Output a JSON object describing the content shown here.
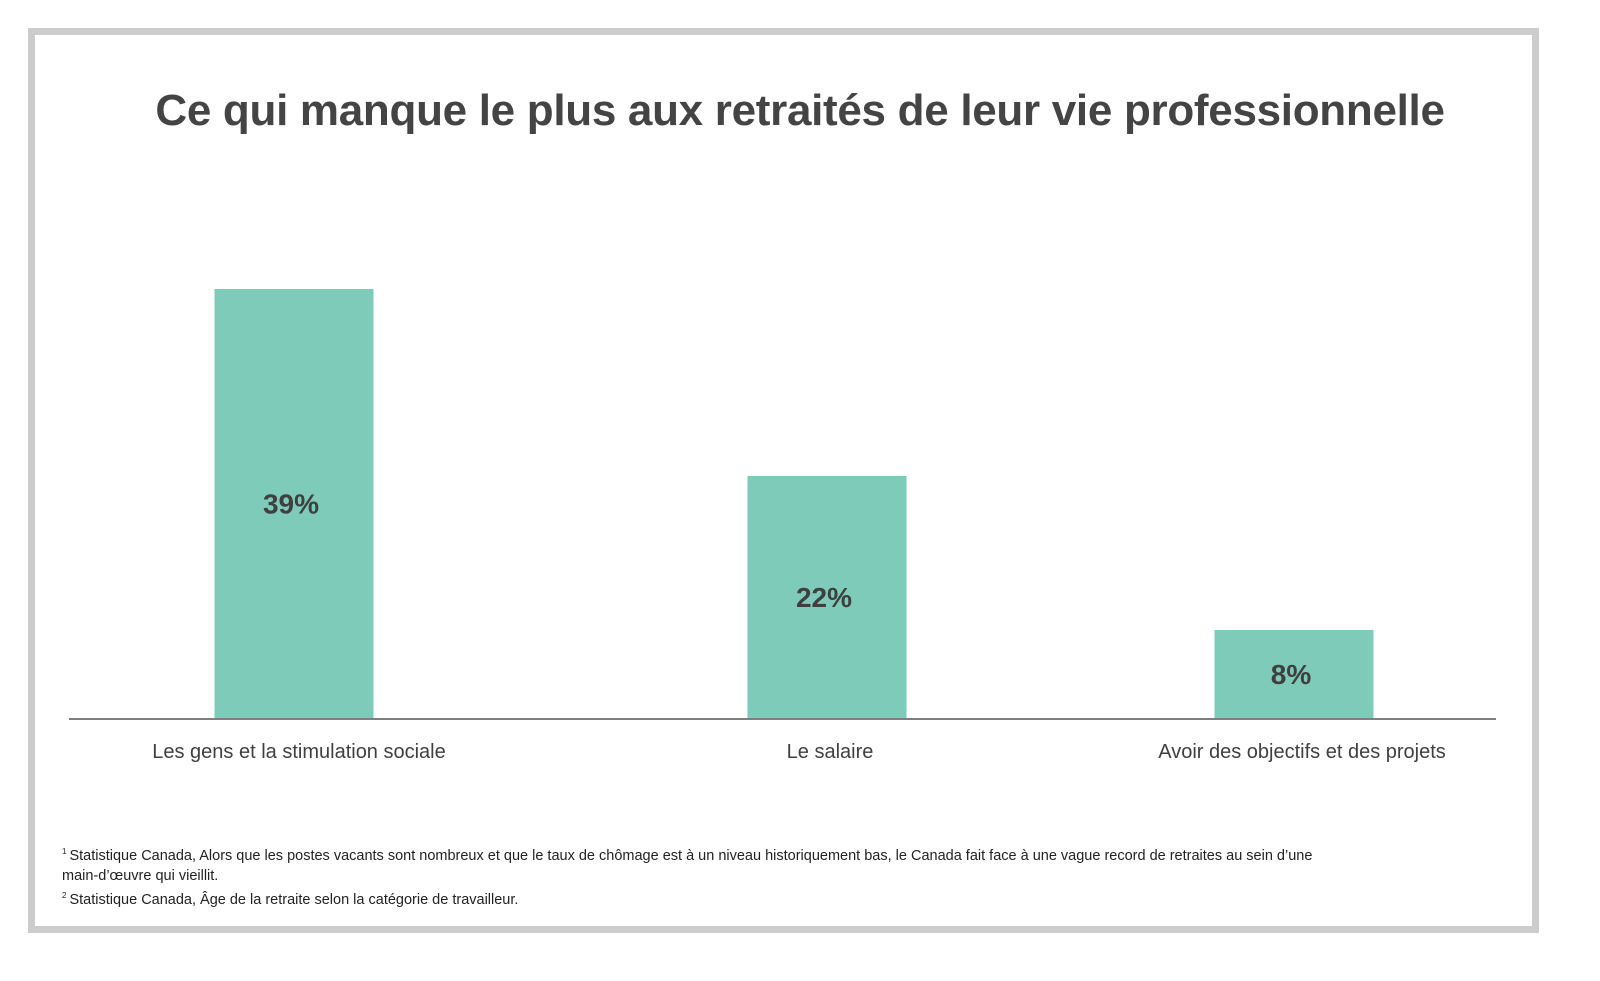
{
  "chart_data": {
    "type": "bar",
    "title": "Ce qui manque le plus aux retraités de leur vie professionnelle",
    "categories": [
      "Les gens et la stimulation sociale",
      "Le salaire",
      "Avoir des objectifs et des projets"
    ],
    "values": [
      39,
      22,
      8
    ],
    "value_labels": [
      "39%",
      "22%",
      "8%"
    ],
    "value_unit": "%",
    "bar_color": "#7ECBBA",
    "grid": false,
    "legend": "none",
    "ylim": [
      0,
      42
    ]
  },
  "footnotes": [
    {
      "marker": "1",
      "text": "Statistique Canada, Alors que les postes vacants sont nombreux et que le taux de chômage est à un niveau historiquement bas, le Canada fait face à une vague record de retraites au sein d’une main-d’œuvre qui vieillit."
    },
    {
      "marker": "2",
      "text": "Statistique Canada, Âge de la retraite selon la catégorie de travailleur."
    }
  ]
}
